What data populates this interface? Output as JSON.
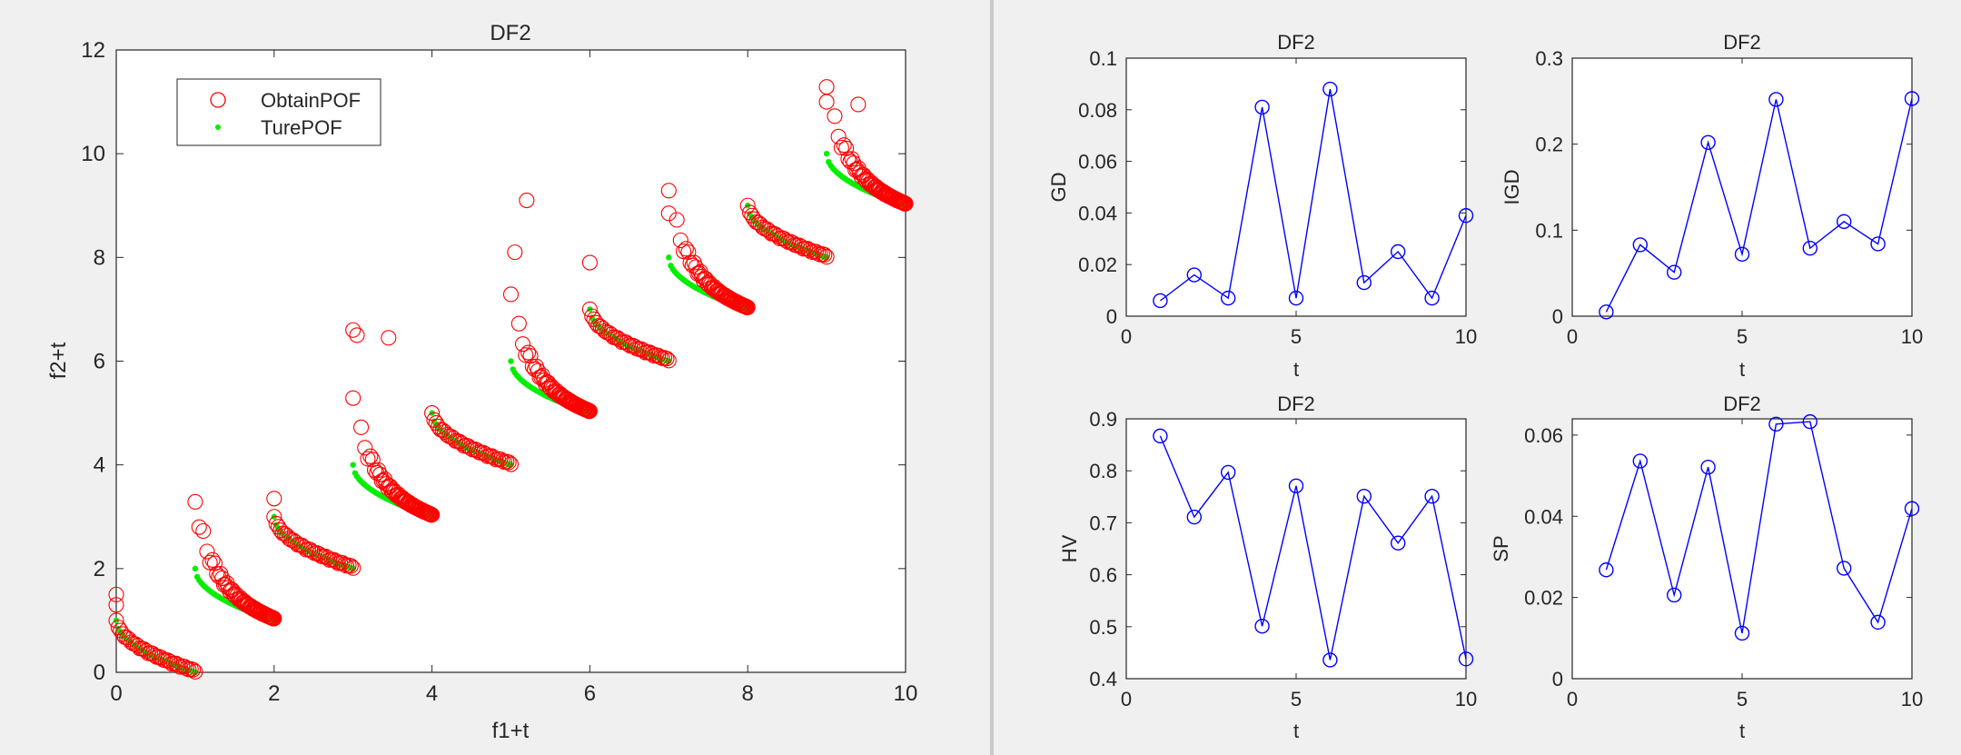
{
  "colors": {
    "obtain": "#ff0000",
    "true": "#00ee00",
    "metric": "#0000ff",
    "axis": "#262626",
    "background": "#f0f0f0"
  },
  "chart_data": [
    {
      "id": "main",
      "type": "scatter",
      "title": "DF2",
      "xlabel": "f1+t",
      "ylabel": "f2+t",
      "xlim": [
        0,
        10
      ],
      "ylim": [
        0,
        12
      ],
      "xticks": [
        0,
        2,
        4,
        6,
        8,
        10
      ],
      "yticks": [
        0,
        2,
        4,
        6,
        8,
        10,
        12
      ],
      "grid": false,
      "legend": {
        "position": "top-left",
        "entries": [
          "ObtainPOF",
          "TurePOF"
        ]
      },
      "series": [
        {
          "name": "ObtainPOF",
          "marker": "open-circle",
          "color": "#ff0000",
          "points": []
        },
        {
          "name": "TurePOF",
          "marker": "dot",
          "color": "#00ee00",
          "points": []
        }
      ]
    },
    {
      "id": "gd",
      "type": "line",
      "title": "DF2",
      "xlabel": "t",
      "ylabel": "GD",
      "xlim": [
        0,
        10
      ],
      "ylim": [
        0,
        0.1
      ],
      "xticks": [
        0,
        5,
        10
      ],
      "yticks": [
        0,
        0.02,
        0.04,
        0.06,
        0.08,
        0.1
      ],
      "x": [
        1,
        2,
        3,
        4,
        5,
        6,
        7,
        8,
        9,
        10
      ],
      "values": [
        0.006,
        0.016,
        0.007,
        0.081,
        0.007,
        0.088,
        0.013,
        0.025,
        0.007,
        0.039
      ]
    },
    {
      "id": "igd",
      "type": "line",
      "title": "DF2",
      "xlabel": "t",
      "ylabel": "IGD",
      "xlim": [
        0,
        10
      ],
      "ylim": [
        0,
        0.3
      ],
      "xticks": [
        0,
        5,
        10
      ],
      "yticks": [
        0,
        0.1,
        0.2,
        0.3
      ],
      "x": [
        1,
        2,
        3,
        4,
        5,
        6,
        7,
        8,
        9,
        10
      ],
      "values": [
        0.005,
        0.083,
        0.051,
        0.202,
        0.072,
        0.252,
        0.079,
        0.11,
        0.084,
        0.253
      ]
    },
    {
      "id": "hv",
      "type": "line",
      "title": "DF2",
      "xlabel": "t",
      "ylabel": "HV",
      "xlim": [
        0,
        10
      ],
      "ylim": [
        0.4,
        0.9
      ],
      "xticks": [
        0,
        5,
        10
      ],
      "yticks": [
        0.4,
        0.5,
        0.6,
        0.7,
        0.8,
        0.9
      ],
      "x": [
        1,
        2,
        3,
        4,
        5,
        6,
        7,
        8,
        9,
        10
      ],
      "values": [
        0.867,
        0.711,
        0.797,
        0.501,
        0.771,
        0.436,
        0.751,
        0.661,
        0.751,
        0.438
      ]
    },
    {
      "id": "sp",
      "type": "line",
      "title": "DF2",
      "xlabel": "t",
      "ylabel": "SP",
      "xlim": [
        0,
        10
      ],
      "ylim": [
        0,
        0.064
      ],
      "xticks": [
        0,
        5,
        10
      ],
      "yticks": [
        0,
        0.02,
        0.04,
        0.06
      ],
      "x": [
        1,
        2,
        3,
        4,
        5,
        6,
        7,
        8,
        9,
        10
      ],
      "values": [
        0.0268,
        0.0536,
        0.0206,
        0.0521,
        0.0112,
        0.0627,
        0.0633,
        0.0272,
        0.0139,
        0.0419
      ]
    }
  ]
}
